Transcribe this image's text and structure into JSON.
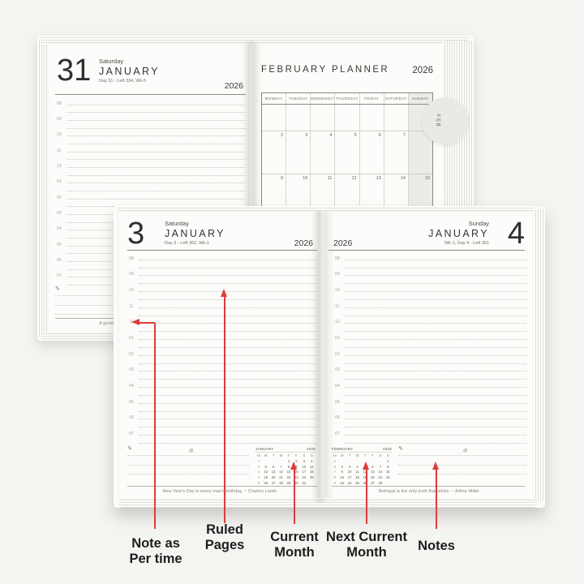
{
  "top_spread": {
    "left_page": {
      "day_number": "31",
      "weekday": "Saturday",
      "month": "JANUARY",
      "day_info": "Day 31 - Left 334, Wk-5",
      "year": "2026",
      "hours": [
        "08",
        "09",
        "10",
        "11",
        "12",
        "01",
        "02",
        "03",
        "04",
        "05",
        "06",
        "07"
      ],
      "quote_fragment": "A good"
    },
    "right_page": {
      "title": "FEBRUARY PLANNER",
      "year": "2026",
      "tab_label": "FEB",
      "day_headers": [
        "MONDAY",
        "TUESDAY",
        "WEDNESDAY",
        "THURSDAY",
        "FRIDAY",
        "SATURDAY",
        "SUNDAY"
      ],
      "weeks": [
        [
          "",
          "",
          "",
          "",
          "",
          "",
          "1"
        ],
        [
          "2",
          "3",
          "4",
          "5",
          "6",
          "7",
          "8"
        ],
        [
          "9",
          "10",
          "11",
          "12",
          "13",
          "14",
          "15"
        ]
      ]
    }
  },
  "bottom_spread": {
    "left_page": {
      "day_number": "3",
      "weekday": "Saturday",
      "month": "JANUARY",
      "day_info": "Day 3 - Left 362, Wk-1",
      "year": "2026",
      "hours": [
        "08",
        "09",
        "10",
        "11",
        "12",
        "01",
        "02",
        "03",
        "04",
        "05",
        "06",
        "07"
      ],
      "mini_calendar": {
        "month": "JANUARY",
        "year": "2026",
        "wk_label": "wk",
        "dow": [
          "M",
          "T",
          "W",
          "T",
          "F",
          "S",
          "S"
        ],
        "weeks": [
          {
            "wk": "1",
            "days": [
              "",
              "",
              "",
              "1",
              "2",
              "3",
              "4"
            ]
          },
          {
            "wk": "2",
            "days": [
              "5",
              "6",
              "7",
              "8",
              "9",
              "10",
              "11"
            ]
          },
          {
            "wk": "3",
            "days": [
              "12",
              "13",
              "14",
              "15",
              "16",
              "17",
              "18"
            ]
          },
          {
            "wk": "4",
            "days": [
              "19",
              "20",
              "21",
              "22",
              "23",
              "24",
              "25"
            ]
          },
          {
            "wk": "5",
            "days": [
              "26",
              "27",
              "28",
              "29",
              "30",
              "31",
              ""
            ]
          }
        ]
      },
      "quote": "New Year's Day is every man's birthday. ~ Charles Lamb"
    },
    "right_page": {
      "day_number": "4",
      "weekday": "Sunday",
      "month": "JANUARY",
      "day_info": "Wk-1, Day 4 - Left 361",
      "year": "2026",
      "hours": [
        "08",
        "09",
        "10",
        "11",
        "12",
        "01",
        "02",
        "03",
        "04",
        "05",
        "06",
        "07"
      ],
      "mini_calendar": {
        "month": "FEBRUARY",
        "year": "2026",
        "wk_label": "wk",
        "dow": [
          "M",
          "T",
          "W",
          "T",
          "F",
          "S",
          "S"
        ],
        "weeks": [
          {
            "wk": "5",
            "days": [
              "",
              "",
              "",
              "",
              "",
              "",
              "1"
            ]
          },
          {
            "wk": "6",
            "days": [
              "2",
              "3",
              "4",
              "5",
              "6",
              "7",
              "8"
            ]
          },
          {
            "wk": "7",
            "days": [
              "9",
              "10",
              "11",
              "12",
              "13",
              "14",
              "15"
            ]
          },
          {
            "wk": "8",
            "days": [
              "16",
              "17",
              "18",
              "19",
              "20",
              "21",
              "22"
            ]
          },
          {
            "wk": "9",
            "days": [
              "23",
              "24",
              "25",
              "26",
              "27",
              "28",
              ""
            ]
          }
        ]
      },
      "quote": "Betrayal is the only truth that sticks. ~ Arthur Miller"
    }
  },
  "icons": {
    "pencil": "✎",
    "at": "@"
  },
  "colors": {
    "annotation_red": "#dd3c3c",
    "page": "#fcfcfa",
    "sunday_shade": "#ebebe7"
  },
  "callouts": {
    "note_time": {
      "line1": "Note as",
      "line2": "Per time"
    },
    "ruled_pages": {
      "line1": "Ruled",
      "line2": "Pages"
    },
    "current_month": {
      "line1": "Current",
      "line2": "Month"
    },
    "next_current_month": {
      "line1": "Next Current",
      "line2": "Month"
    },
    "notes": {
      "line1": "Notes"
    }
  }
}
